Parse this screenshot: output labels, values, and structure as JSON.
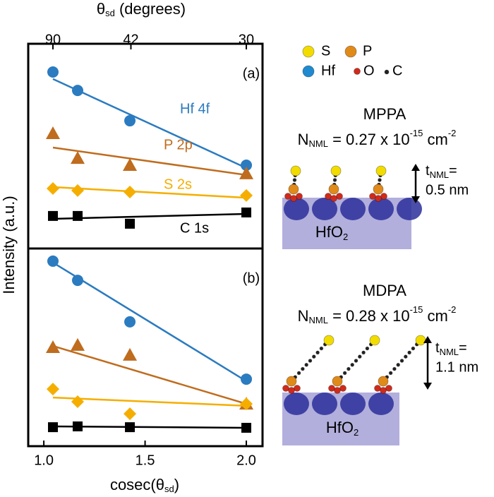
{
  "chart_data": [
    {
      "type": "scatter",
      "panel_label": "(a)",
      "x2_label": {
        "symbol": "θ",
        "sub": "sd",
        "rest": " (degrees)"
      },
      "x2ticks": [
        {
          "value": 1.045,
          "label": "90"
        },
        {
          "value": 1.43,
          "label": "42"
        },
        {
          "value": 2.0,
          "label": "30"
        }
      ],
      "y_label": "Intensity (a.u.)",
      "x": [
        1.045,
        1.167,
        1.425,
        2.0
      ],
      "xlim": [
        0.923,
        2.08
      ],
      "ylim": [
        0,
        100
      ],
      "series": [
        {
          "name": "Hf 4f",
          "color": "#2b7bc0",
          "marker": "circle",
          "values": [
            86.2,
            77.2,
            62.4,
            40.7
          ],
          "fit": [
            82.8,
            39.3
          ]
        },
        {
          "name": "P 2p",
          "color": "#bf6c1e",
          "marker": "triangle",
          "values": [
            56.2,
            44.1,
            40.7,
            36.6
          ],
          "fit": [
            49.3,
            35.9
          ]
        },
        {
          "name": "S 2s",
          "color": "#f5ae00",
          "marker": "diamond",
          "values": [
            29.3,
            28.3,
            27.6,
            25.9
          ],
          "fit": [
            30.0,
            24.8
          ]
        },
        {
          "name": "C 1s",
          "color": "#000000",
          "marker": "square",
          "values": [
            15.9,
            15.9,
            12.1,
            17.6
          ],
          "fit": [
            14.5,
            16.9
          ]
        }
      ]
    },
    {
      "type": "scatter",
      "panel_label": "(b)",
      "x_label": {
        "start": "cosec(θ",
        "sub": "sd",
        "end": ")"
      },
      "x": [
        1.045,
        1.167,
        1.425,
        2.0
      ],
      "xlim": [
        0.923,
        2.08
      ],
      "ylim": [
        0,
        100
      ],
      "xticks": [
        {
          "value": 1.0,
          "label": "1.0"
        },
        1.5,
        {
          "value": 2.0,
          "label": "2.0"
        }
      ],
      "series": [
        {
          "color": "#2b7bc0",
          "marker": "circle",
          "values": [
            93.6,
            83.9,
            62.9,
            33.9
          ],
          "fit": [
            92.9,
            32.9
          ]
        },
        {
          "color": "#bf6c1e",
          "marker": "triangle",
          "values": [
            50.0,
            51.1,
            46.1,
            21.4
          ],
          "fit": [
            50.7,
            21.4
          ]
        },
        {
          "color": "#f5ae00",
          "marker": "diamond",
          "values": [
            28.9,
            22.5,
            16.4,
            21.4
          ],
          "fit": [
            24.6,
            20.4
          ]
        },
        {
          "color": "#000000",
          "marker": "square",
          "values": [
            9.6,
            10.0,
            9.6,
            9.3
          ],
          "fit": [
            10.0,
            9.3
          ]
        }
      ]
    }
  ],
  "diagrams": {
    "legend": [
      "S",
      "P",
      "Hf",
      "O",
      "C"
    ],
    "top": {
      "name": "MPPA",
      "n_main": "N",
      "n_sub": "NML",
      "n_mid": " = 0.27 x 10",
      "n_sup": "-15",
      "n_unit": " cm",
      "n_sup2": "-2",
      "t_main": "t",
      "t_sub": "NML",
      "t_eq": "=",
      "thickness": "0.5 nm",
      "substrate": "HfO",
      "substrate_sub": "2"
    },
    "bottom": {
      "name": "MDPA",
      "n_main": "N",
      "n_sub": "NML",
      "n_mid": " = 0.28 x 10",
      "n_sup": "-15",
      "n_unit": " cm",
      "n_sup2": "-2",
      "t_main": "t",
      "t_sub": "NML",
      "t_eq": "=",
      "thickness": "1.1 nm",
      "substrate": "HfO",
      "substrate_sub": "2"
    }
  }
}
